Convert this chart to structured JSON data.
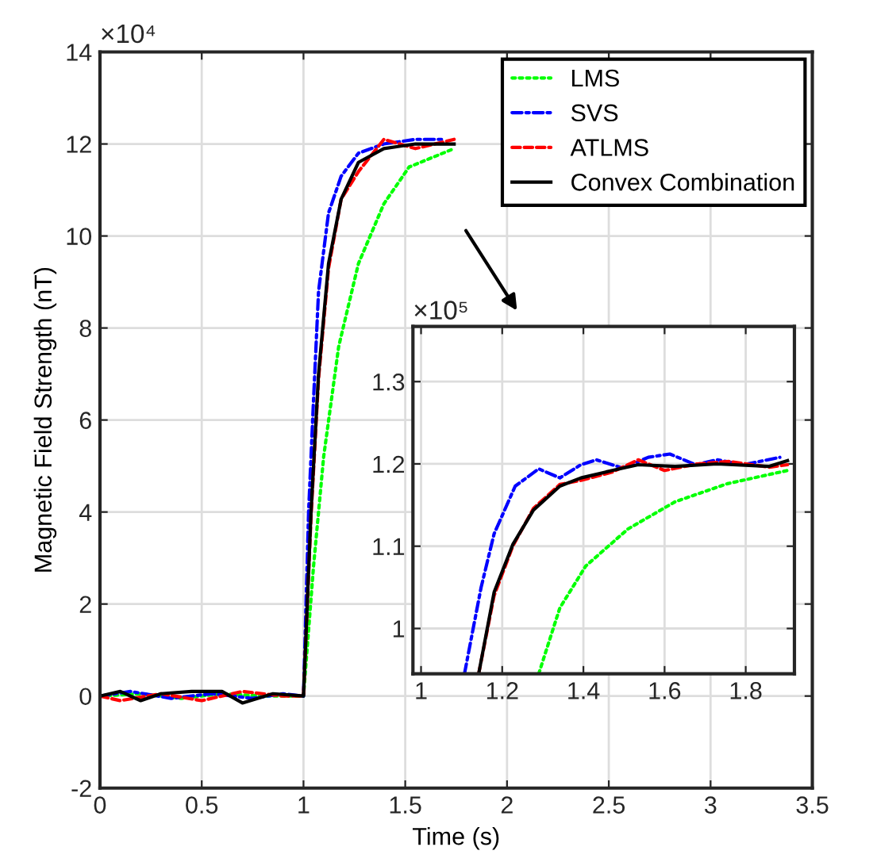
{
  "chart_data": [
    {
      "type": "line",
      "xlabel": "Time (s)",
      "ylabel": "Magnetic Field Strength (nT)",
      "annotations": [
        "×10⁴"
      ],
      "xlim": [
        0,
        3.5
      ],
      "xticks": [
        0,
        0.5,
        1,
        1.5,
        2,
        2.5,
        3,
        3.5
      ],
      "ylim": [
        -2,
        14
      ],
      "yticks": [
        -2,
        0,
        2,
        4,
        6,
        8,
        10,
        12,
        14
      ],
      "grid": true,
      "legend": "top right",
      "series": [
        {
          "name": "LMS",
          "color": "#00ff00",
          "line_style": "dotted",
          "x": [
            0,
            0.2,
            0.4,
            0.6,
            0.8,
            1.0,
            1.049,
            1.099,
            1.173,
            1.27,
            1.395,
            1.519,
            1.74
          ],
          "values": [
            0,
            0.05,
            -0.05,
            0.05,
            0,
            0,
            2.8,
            5.2,
            7.6,
            9.4,
            10.7,
            11.5,
            11.9
          ]
        },
        {
          "name": "SVS",
          "color": "#0000ff",
          "line_style": "dashdot",
          "x": [
            0,
            0.15,
            0.35,
            0.55,
            0.75,
            0.9,
            1.0,
            1.025,
            1.049,
            1.074,
            1.123,
            1.185,
            1.27,
            1.395,
            1.55,
            1.69
          ],
          "values": [
            0,
            0.1,
            -0.05,
            0.05,
            -0.05,
            0.05,
            0,
            4.0,
            6.4,
            8.8,
            10.5,
            11.3,
            11.8,
            12.0,
            12.1,
            12.1
          ]
        },
        {
          "name": "ATLMS",
          "color": "#ff0000",
          "line_style": "dashed",
          "x": [
            0,
            0.1,
            0.3,
            0.5,
            0.7,
            0.9,
            1.0,
            1.037,
            1.074,
            1.123,
            1.185,
            1.27,
            1.395,
            1.55,
            1.74
          ],
          "values": [
            0,
            -0.1,
            0.05,
            -0.1,
            0.1,
            0,
            0,
            3.9,
            6.9,
            9.3,
            10.8,
            11.4,
            12.1,
            11.9,
            12.1
          ]
        },
        {
          "name": "Convex Combination",
          "color": "#000000",
          "line_style": "solid",
          "x": [
            0,
            0.1,
            0.2,
            0.3,
            0.45,
            0.6,
            0.7,
            0.85,
            1.0,
            1.037,
            1.074,
            1.123,
            1.185,
            1.27,
            1.395,
            1.55,
            1.74
          ],
          "values": [
            0,
            0.1,
            -0.1,
            0.05,
            0.1,
            0.1,
            -0.15,
            0.05,
            0,
            4.0,
            7.0,
            9.4,
            10.8,
            11.6,
            11.9,
            12.0,
            12.0
          ]
        }
      ]
    },
    {
      "type": "line",
      "annotations": [
        "×10⁵"
      ],
      "xlim": [
        0.98,
        1.92
      ],
      "xticks": [
        1,
        1.2,
        1.4,
        1.6,
        1.8
      ],
      "ylim": [
        0.945,
        1.367
      ],
      "yticks": [
        1,
        1.1,
        1.2,
        1.3
      ],
      "grid": true,
      "series": [
        {
          "color": "#00ff00",
          "line_style": "dotted",
          "x": [
            1.29,
            1.342,
            1.406,
            1.51,
            1.626,
            1.755,
            1.903
          ],
          "values": [
            0.945,
            1.025,
            1.076,
            1.121,
            1.154,
            1.176,
            1.192
          ]
        },
        {
          "color": "#0000ff",
          "line_style": "dashdot",
          "x": [
            1.107,
            1.148,
            1.18,
            1.232,
            1.29,
            1.342,
            1.394,
            1.432,
            1.497,
            1.56,
            1.613,
            1.677,
            1.729,
            1.794,
            1.884
          ],
          "values": [
            0.945,
            1.05,
            1.115,
            1.173,
            1.194,
            1.183,
            1.199,
            1.205,
            1.195,
            1.208,
            1.212,
            1.199,
            1.205,
            1.199,
            1.208
          ]
        },
        {
          "color": "#ff0000",
          "line_style": "dashed",
          "x": [
            1.142,
            1.18,
            1.226,
            1.277,
            1.342,
            1.394,
            1.471,
            1.535,
            1.6,
            1.68,
            1.76,
            1.858,
            1.903
          ],
          "values": [
            0.945,
            1.04,
            1.1,
            1.146,
            1.175,
            1.18,
            1.19,
            1.205,
            1.192,
            1.2,
            1.203,
            1.196,
            1.199
          ]
        },
        {
          "color": "#000000",
          "line_style": "solid",
          "x": [
            1.142,
            1.18,
            1.226,
            1.277,
            1.342,
            1.394,
            1.471,
            1.535,
            1.626,
            1.729,
            1.858,
            1.903
          ],
          "values": [
            0.945,
            1.044,
            1.102,
            1.144,
            1.173,
            1.183,
            1.192,
            1.199,
            1.197,
            1.2,
            1.197,
            1.204
          ]
        }
      ]
    }
  ]
}
